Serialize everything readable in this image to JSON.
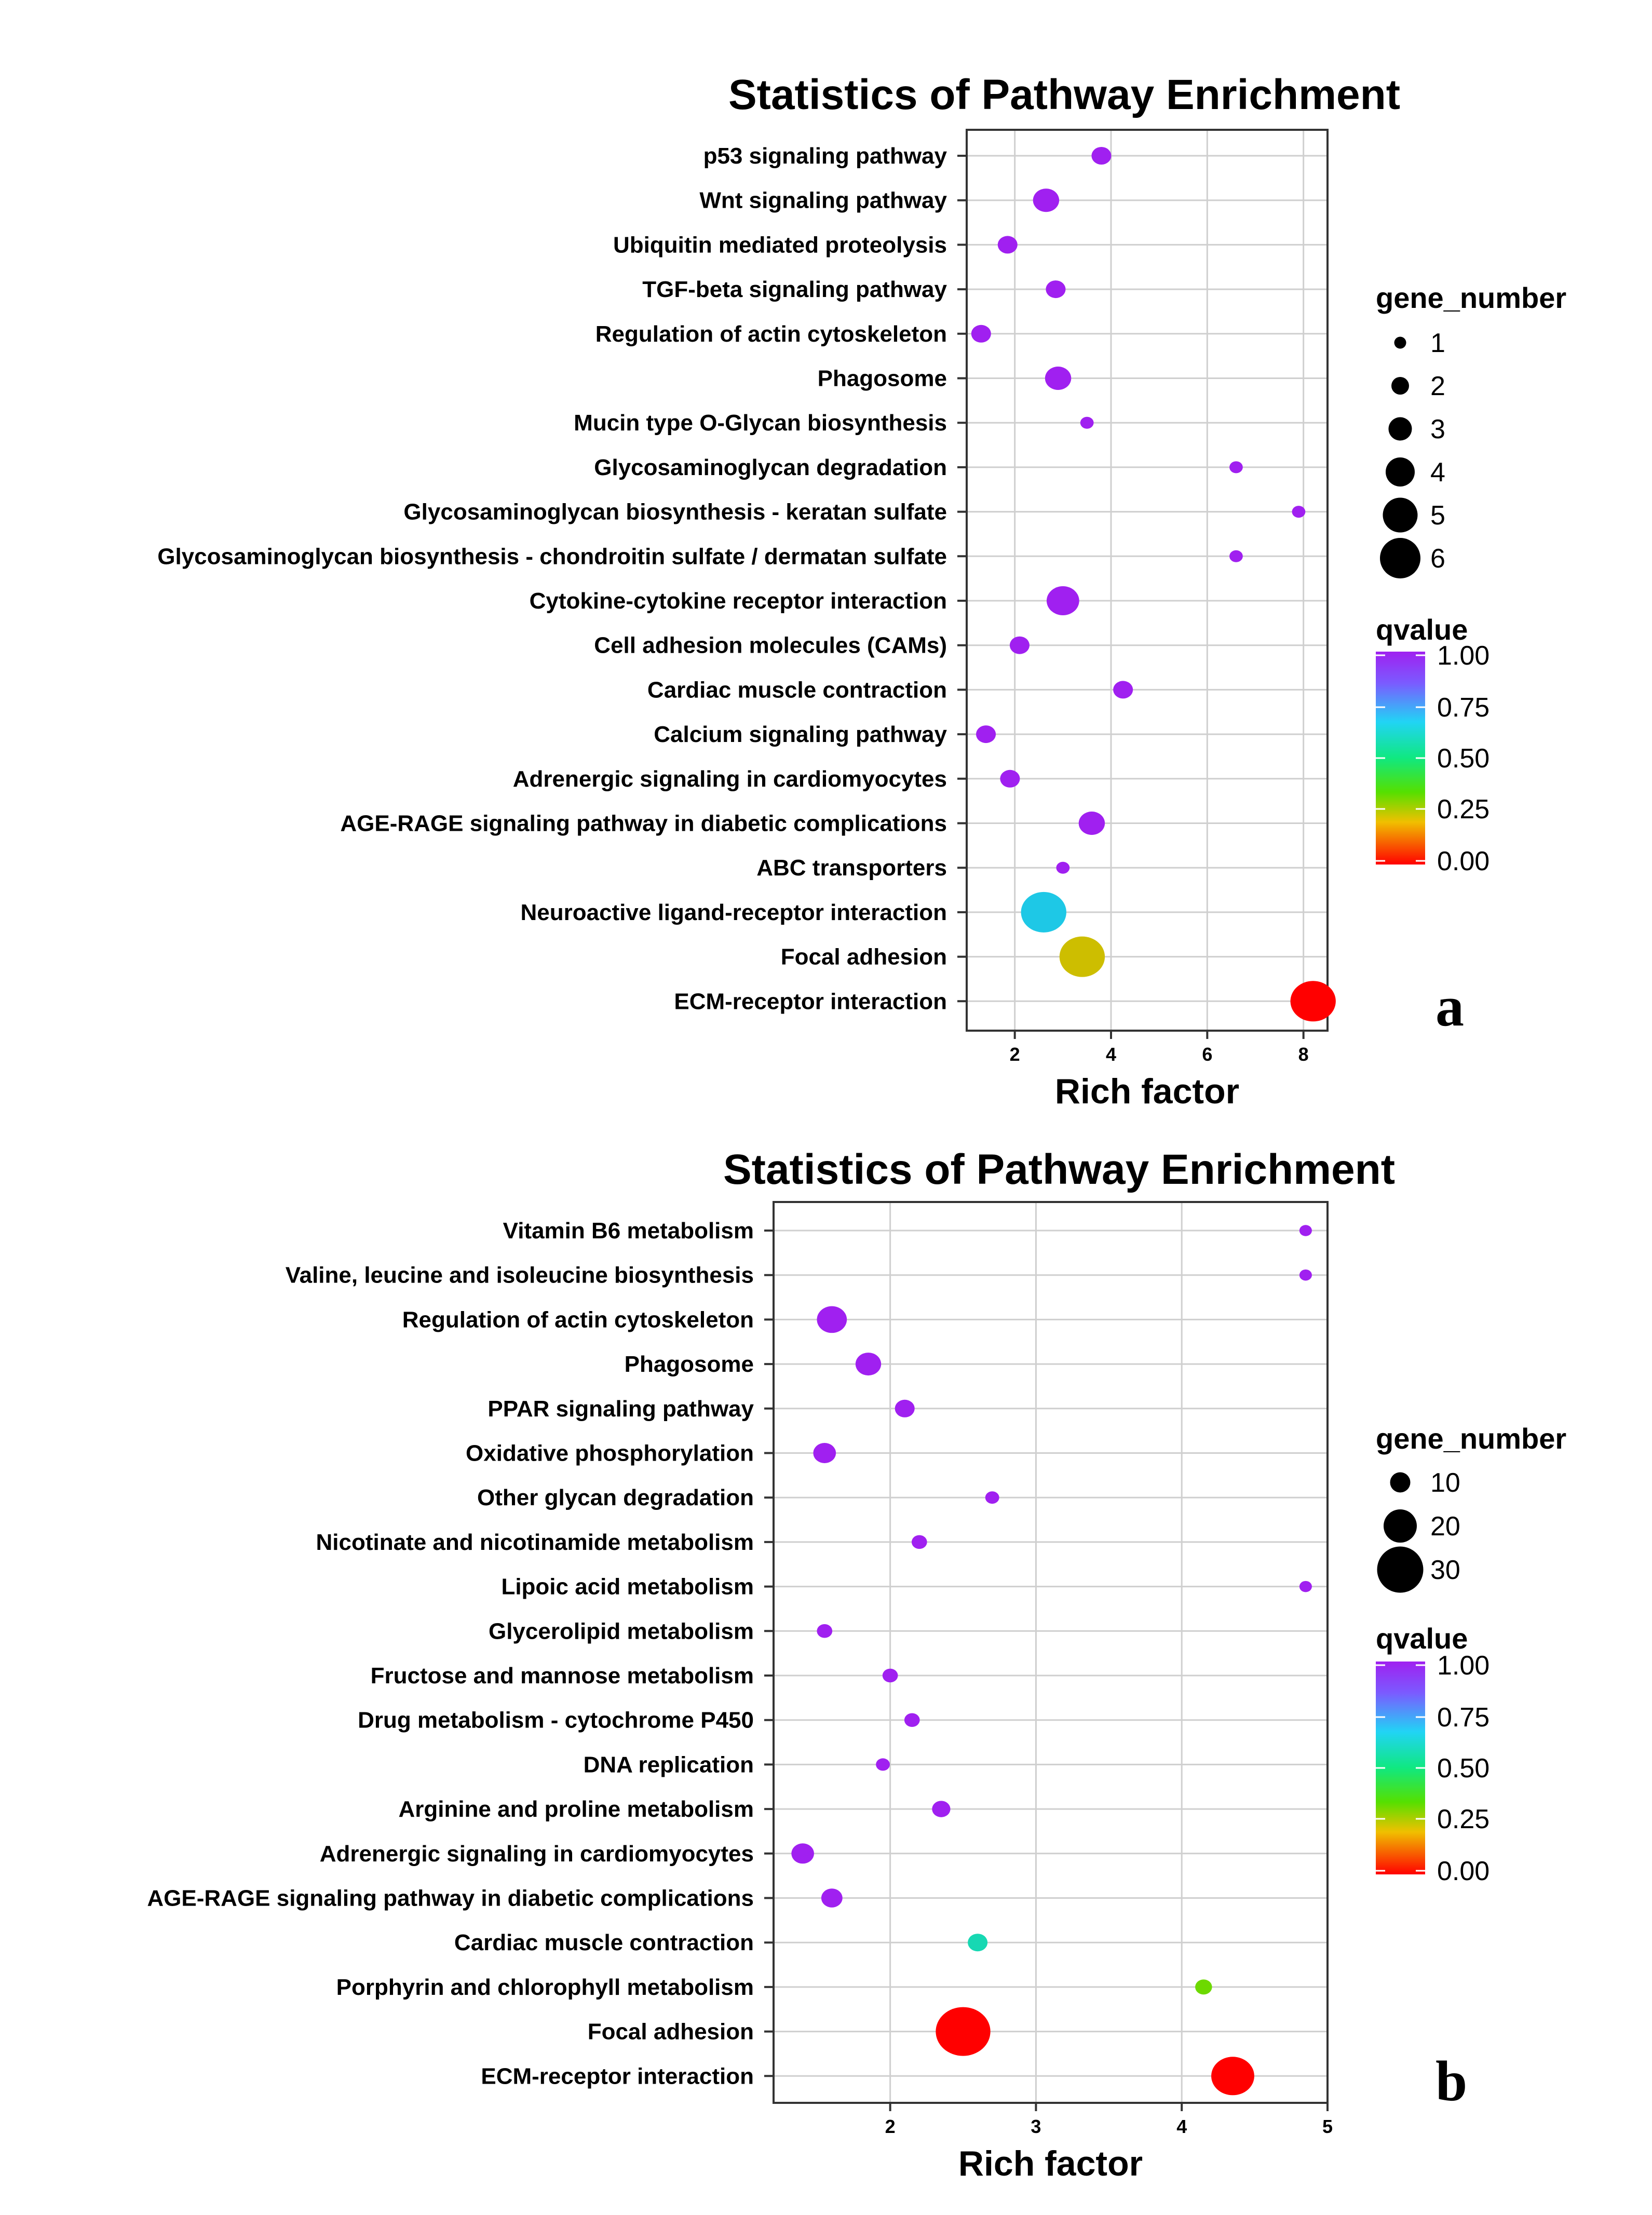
{
  "chart_data": [
    {
      "type": "scatter",
      "panel": "a",
      "title": "Statistics of Pathway Enrichment",
      "xlabel": "Rich factor",
      "xlim": [
        1,
        8.5
      ],
      "xticks": [
        2,
        4,
        6,
        8
      ],
      "categories": [
        "p53 signaling pathway",
        "Wnt signaling pathway",
        "Ubiquitin mediated proteolysis",
        "TGF-beta signaling pathway",
        "Regulation of actin cytoskeleton",
        "Phagosome",
        "Mucin type O-Glycan biosynthesis",
        "Glycosaminoglycan degradation",
        "Glycosaminoglycan biosynthesis - keratan sulfate",
        "Glycosaminoglycan biosynthesis - chondroitin sulfate / dermatan sulfate",
        "Cytokine-cytokine receptor interaction",
        "Cell adhesion molecules (CAMs)",
        "Cardiac muscle contraction",
        "Calcium signaling pathway",
        "Adrenergic signaling in cardiomyocytes",
        "AGE-RAGE signaling pathway in diabetic complications",
        "ABC transporters",
        "Neuroactive ligand-receptor interaction",
        "Focal adhesion",
        "ECM-receptor interaction"
      ],
      "rich_factor": [
        3.8,
        2.65,
        1.85,
        2.85,
        1.3,
        2.9,
        3.5,
        6.6,
        7.9,
        6.6,
        3.0,
        2.1,
        4.25,
        1.4,
        1.9,
        3.6,
        3.0,
        2.6,
        3.4,
        8.2
      ],
      "gene_number": [
        2,
        3,
        2,
        2,
        2,
        3,
        1,
        1,
        1,
        1,
        4,
        2,
        2,
        2,
        2,
        3,
        1,
        6,
        6,
        6
      ],
      "qvalue": [
        1.0,
        1.0,
        1.0,
        1.0,
        1.0,
        1.0,
        1.0,
        1.0,
        1.0,
        1.0,
        1.0,
        1.0,
        1.0,
        1.0,
        1.0,
        1.0,
        1.0,
        0.6,
        0.2,
        0.0
      ],
      "legend": {
        "size_title": "gene_number",
        "size_values": [
          "1",
          "2",
          "3",
          "4",
          "5",
          "6"
        ],
        "color_title": "qvalue",
        "color_values": [
          "1.00",
          "0.75",
          "0.50",
          "0.25",
          "0.00"
        ]
      }
    },
    {
      "type": "scatter",
      "panel": "b",
      "title": "Statistics of Pathway Enrichment",
      "xlabel": "Rich factor",
      "xlim": [
        1.2,
        5.0
      ],
      "xticks": [
        2,
        3,
        4,
        5
      ],
      "categories": [
        "Vitamin B6 metabolism",
        "Valine, leucine and isoleucine biosynthesis",
        "Regulation of actin cytoskeleton",
        "Phagosome",
        "PPAR signaling pathway",
        "Oxidative phosphorylation",
        "Other glycan degradation",
        "Nicotinate and nicotinamide metabolism",
        "Lipoic acid metabolism",
        "Glycerolipid metabolism",
        "Fructose and mannose metabolism",
        "Drug metabolism - cytochrome P450",
        "DNA replication",
        "Arginine and proline metabolism",
        "Adrenergic signaling in cardiomyocytes",
        "AGE-RAGE signaling pathway in diabetic complications",
        "Cardiac muscle contraction",
        "Porphyrin and chlorophyll metabolism",
        "Focal adhesion",
        "ECM-receptor interaction"
      ],
      "rich_factor": [
        4.85,
        4.85,
        1.6,
        1.85,
        2.1,
        1.55,
        2.7,
        2.2,
        4.85,
        1.55,
        2.0,
        2.15,
        1.95,
        2.35,
        1.4,
        1.6,
        2.6,
        4.15,
        2.5,
        4.35
      ],
      "gene_number": [
        3,
        3,
        15,
        12,
        8,
        10,
        4,
        5,
        3,
        5,
        5,
        5,
        4,
        7,
        10,
        9,
        8,
        6,
        32,
        24
      ],
      "qvalue": [
        1.0,
        1.0,
        1.0,
        1.0,
        1.0,
        1.0,
        1.0,
        1.0,
        1.0,
        1.0,
        1.0,
        1.0,
        1.0,
        1.0,
        1.0,
        1.0,
        0.55,
        0.3,
        0.0,
        0.0
      ],
      "legend": {
        "size_title": "gene_number",
        "size_values": [
          "10",
          "20",
          "30"
        ],
        "color_title": "qvalue",
        "color_values": [
          "1.00",
          "0.75",
          "0.50",
          "0.25",
          "0.00"
        ]
      }
    }
  ]
}
